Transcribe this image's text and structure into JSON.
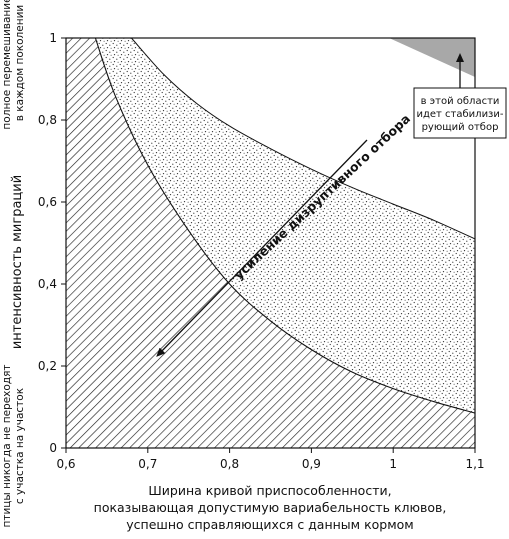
{
  "chart_data": {
    "type": "area",
    "xlim": [
      0.6,
      1.1
    ],
    "ylim": [
      0,
      1
    ],
    "x_ticks": [
      "0,6",
      "0,7",
      "0,8",
      "0,9",
      "1",
      "1,1"
    ],
    "y_ticks": [
      "0",
      "0,2",
      "0,4",
      "0,6",
      "0,8",
      "1"
    ],
    "ylabel": "интенсивность миграций",
    "ylabel_top": [
      "полное перемешивание",
      "в каждом поколении"
    ],
    "ylabel_bottom": [
      "птицы никогда не переходят",
      "с участка на участок"
    ],
    "xlabel": [
      "Ширина кривой приспособленности,",
      "показывающая допустимую вариабельность клювов,",
      "успешно справляющихся с данным кормом"
    ],
    "curves": [
      {
        "region": "hatched",
        "x": [
          0.636,
          0.66,
          0.7,
          0.75,
          0.8,
          0.85,
          0.9,
          0.95,
          1.0,
          1.05,
          1.1
        ],
        "y": [
          1.0,
          0.86,
          0.69,
          0.53,
          0.4,
          0.31,
          0.24,
          0.185,
          0.145,
          0.113,
          0.085
        ]
      },
      {
        "region": "dotted",
        "x": [
          0.68,
          0.72,
          0.76,
          0.8,
          0.85,
          0.9,
          0.95,
          1.0,
          1.05,
          1.1
        ],
        "y": [
          1.0,
          0.91,
          0.84,
          0.785,
          0.73,
          0.68,
          0.635,
          0.595,
          0.555,
          0.51
        ]
      },
      {
        "region": "stabilizing",
        "x": [
          0.995,
          1.1
        ],
        "y": [
          1.0,
          0.905
        ]
      }
    ],
    "arrow_label": "усиление дизруптивного отбора",
    "callout": [
      "в этой области",
      "идет стабилизи-",
      "рующий отбор"
    ],
    "colors": {
      "stabilizing_fill": "#a8a8a8",
      "line": "#111111",
      "hatch": "#222222",
      "dots": "#333333"
    }
  }
}
